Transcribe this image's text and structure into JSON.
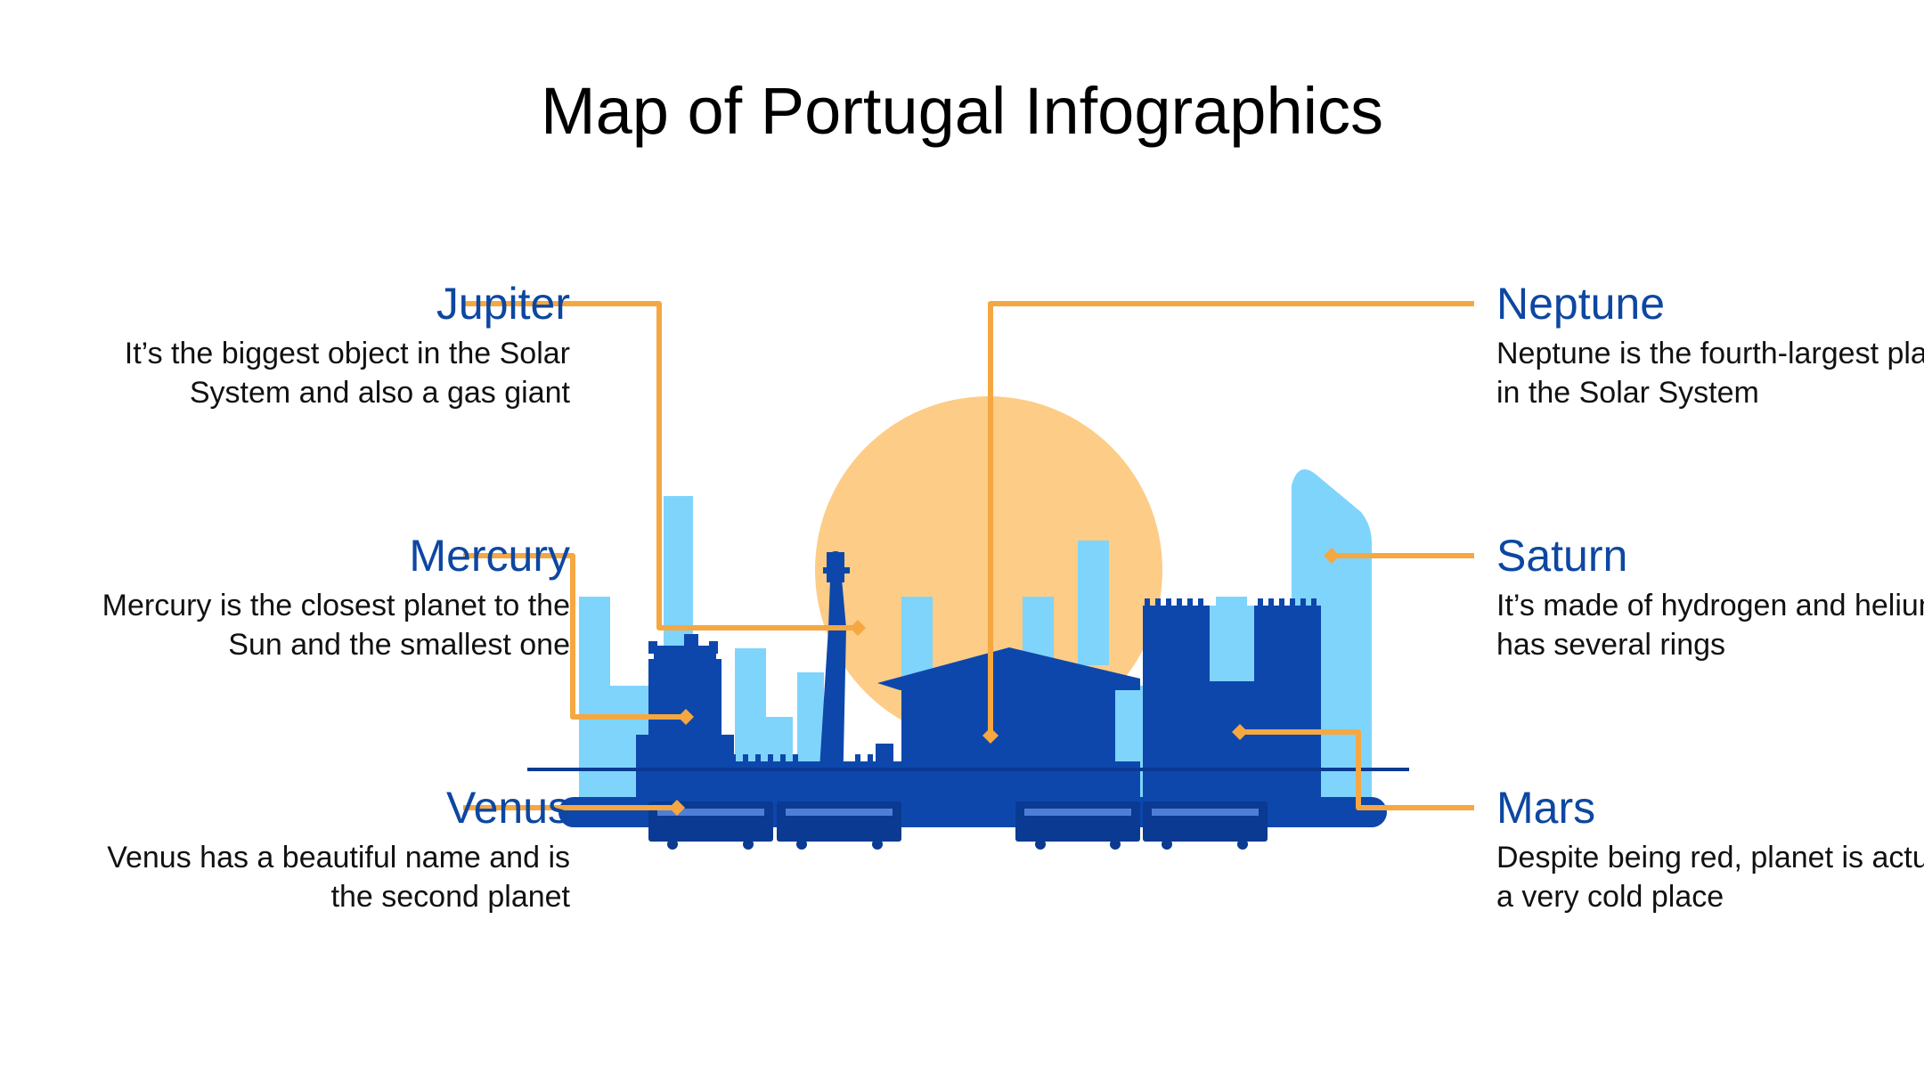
{
  "title": "Map of Portugal Infographics",
  "colors": {
    "heading": "#0D47A1",
    "connector": "#F5A742",
    "sun": "#FDCC86",
    "skyline_light": "#7FD4FB",
    "skyline_dark": "#0D47AC",
    "tram": "#0A3A91"
  },
  "items": {
    "jupiter": {
      "name": "Jupiter",
      "description": "It’s the biggest object in the Solar System and also a gas giant"
    },
    "mercury": {
      "name": "Mercury",
      "description": "Mercury is the closest planet to the Sun and the smallest one"
    },
    "venus": {
      "name": "Venus",
      "description": "Venus has a beautiful name and is the second planet"
    },
    "neptune": {
      "name": "Neptune",
      "description": "Neptune is the fourth-largest planet in the Solar System"
    },
    "saturn": {
      "name": "Saturn",
      "description": "It’s made of hydrogen and helium. It has several rings"
    },
    "mars": {
      "name": "Mars",
      "description": "Despite being red, planet is actually a very cold place"
    }
  }
}
